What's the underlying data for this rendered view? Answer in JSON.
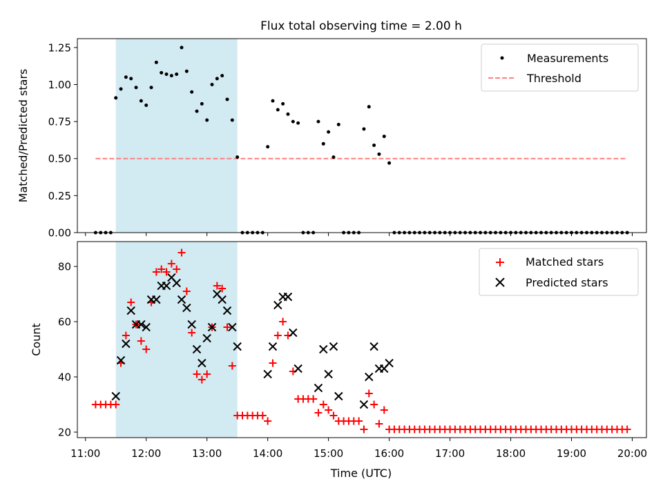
{
  "colors": {
    "shade": "#add8e6",
    "measurement": "#000000",
    "threshold": "#ff7f7f",
    "matched": "#ff0000",
    "predicted": "#000000"
  },
  "chart_data": [
    {
      "type": "scatter",
      "title": "Flux total observing time = 2.00 h",
      "xlabel": "",
      "ylabel": "Matched/Predicted stars",
      "xlim": [
        "10:52",
        "20:14"
      ],
      "ylim": [
        0,
        1.31
      ],
      "yticks": [
        "0.00",
        "0.25",
        "0.50",
        "0.75",
        "1.00",
        "1.25"
      ],
      "shaded_interval": [
        "11:30",
        "13:30"
      ],
      "threshold": {
        "name": "Threshold",
        "y": 0.5,
        "x_range": [
          "11:10",
          "19:55"
        ]
      },
      "legend": [
        "Measurements",
        "Threshold"
      ],
      "legend_position": "top-right",
      "series": [
        {
          "name": "Measurements",
          "points": [
            [
              "11:10",
              0
            ],
            [
              "11:15",
              0
            ],
            [
              "11:20",
              0
            ],
            [
              "11:25",
              0
            ],
            [
              "11:30",
              0.91
            ],
            [
              "11:35",
              0.97
            ],
            [
              "11:40",
              1.05
            ],
            [
              "11:45",
              1.04
            ],
            [
              "11:50",
              0.98
            ],
            [
              "11:55",
              0.89
            ],
            [
              "12:00",
              0.86
            ],
            [
              "12:05",
              0.98
            ],
            [
              "12:10",
              1.15
            ],
            [
              "12:15",
              1.08
            ],
            [
              "12:20",
              1.07
            ],
            [
              "12:25",
              1.06
            ],
            [
              "12:30",
              1.07
            ],
            [
              "12:35",
              1.25
            ],
            [
              "12:40",
              1.09
            ],
            [
              "12:45",
              0.95
            ],
            [
              "12:50",
              0.82
            ],
            [
              "12:55",
              0.87
            ],
            [
              "13:00",
              0.76
            ],
            [
              "13:05",
              1.0
            ],
            [
              "13:10",
              1.04
            ],
            [
              "13:15",
              1.06
            ],
            [
              "13:20",
              0.9
            ],
            [
              "13:25",
              0.76
            ],
            [
              "13:30",
              0.51
            ],
            [
              "13:35",
              0
            ],
            [
              "13:40",
              0
            ],
            [
              "13:45",
              0
            ],
            [
              "13:50",
              0
            ],
            [
              "13:55",
              0
            ],
            [
              "14:00",
              0.58
            ],
            [
              "14:05",
              0.89
            ],
            [
              "14:10",
              0.83
            ],
            [
              "14:15",
              0.87
            ],
            [
              "14:20",
              0.8
            ],
            [
              "14:25",
              0.75
            ],
            [
              "14:30",
              0.74
            ],
            [
              "14:35",
              0
            ],
            [
              "14:40",
              0
            ],
            [
              "14:45",
              0
            ],
            [
              "14:50",
              0.75
            ],
            [
              "14:55",
              0.6
            ],
            [
              "15:00",
              0.68
            ],
            [
              "15:05",
              0.51
            ],
            [
              "15:10",
              0.73
            ],
            [
              "15:15",
              0
            ],
            [
              "15:20",
              0
            ],
            [
              "15:25",
              0
            ],
            [
              "15:30",
              0
            ],
            [
              "15:35",
              0.7
            ],
            [
              "15:40",
              0.85
            ],
            [
              "15:45",
              0.59
            ],
            [
              "15:50",
              0.53
            ],
            [
              "15:55",
              0.65
            ],
            [
              "16:00",
              0.47
            ],
            [
              "16:05",
              0
            ],
            [
              "16:10",
              0
            ],
            [
              "16:15",
              0
            ],
            [
              "16:20",
              0
            ],
            [
              "16:25",
              0
            ],
            [
              "16:30",
              0
            ],
            [
              "16:35",
              0
            ],
            [
              "16:40",
              0
            ],
            [
              "16:45",
              0
            ],
            [
              "16:50",
              0
            ],
            [
              "16:55",
              0
            ],
            [
              "17:00",
              0
            ],
            [
              "17:05",
              0
            ],
            [
              "17:10",
              0
            ],
            [
              "17:15",
              0
            ],
            [
              "17:20",
              0
            ],
            [
              "17:25",
              0
            ],
            [
              "17:30",
              0
            ],
            [
              "17:35",
              0
            ],
            [
              "17:40",
              0
            ],
            [
              "17:45",
              0
            ],
            [
              "17:50",
              0
            ],
            [
              "17:55",
              0
            ],
            [
              "18:00",
              0
            ],
            [
              "18:05",
              0
            ],
            [
              "18:10",
              0
            ],
            [
              "18:15",
              0
            ],
            [
              "18:20",
              0
            ],
            [
              "18:25",
              0
            ],
            [
              "18:30",
              0
            ],
            [
              "18:35",
              0
            ],
            [
              "18:40",
              0
            ],
            [
              "18:45",
              0
            ],
            [
              "18:50",
              0
            ],
            [
              "18:55",
              0
            ],
            [
              "19:00",
              0
            ],
            [
              "19:05",
              0
            ],
            [
              "19:10",
              0
            ],
            [
              "19:15",
              0
            ],
            [
              "19:20",
              0
            ],
            [
              "19:25",
              0
            ],
            [
              "19:30",
              0
            ],
            [
              "19:35",
              0
            ],
            [
              "19:40",
              0
            ],
            [
              "19:45",
              0
            ],
            [
              "19:50",
              0
            ],
            [
              "19:55",
              0
            ]
          ]
        }
      ]
    },
    {
      "type": "scatter",
      "title": "",
      "xlabel": "Time (UTC)",
      "ylabel": "Count",
      "xlim": [
        "10:52",
        "20:14"
      ],
      "ylim": [
        18,
        89
      ],
      "yticks": [
        "20",
        "40",
        "60",
        "80"
      ],
      "xticks": [
        "11:00",
        "12:00",
        "13:00",
        "14:00",
        "15:00",
        "16:00",
        "17:00",
        "18:00",
        "19:00",
        "20:00"
      ],
      "shaded_interval": [
        "11:30",
        "13:30"
      ],
      "legend": [
        "Matched stars",
        "Predicted stars"
      ],
      "legend_position": "top-right",
      "series": [
        {
          "name": "Matched stars",
          "marker": "+",
          "points": [
            [
              "11:10",
              30
            ],
            [
              "11:15",
              30
            ],
            [
              "11:20",
              30
            ],
            [
              "11:25",
              30
            ],
            [
              "11:30",
              30
            ],
            [
              "11:35",
              45
            ],
            [
              "11:40",
              55
            ],
            [
              "11:45",
              67
            ],
            [
              "11:50",
              59
            ],
            [
              "11:55",
              53
            ],
            [
              "12:00",
              50
            ],
            [
              "12:05",
              67
            ],
            [
              "12:10",
              78
            ],
            [
              "12:15",
              79
            ],
            [
              "12:20",
              78
            ],
            [
              "12:25",
              81
            ],
            [
              "12:30",
              79
            ],
            [
              "12:35",
              85
            ],
            [
              "12:40",
              71
            ],
            [
              "12:45",
              56
            ],
            [
              "12:50",
              41
            ],
            [
              "12:55",
              39
            ],
            [
              "13:00",
              41
            ],
            [
              "13:05",
              58
            ],
            [
              "13:10",
              73
            ],
            [
              "13:15",
              72
            ],
            [
              "13:20",
              58
            ],
            [
              "13:25",
              44
            ],
            [
              "13:30",
              26
            ],
            [
              "13:35",
              26
            ],
            [
              "13:40",
              26
            ],
            [
              "13:45",
              26
            ],
            [
              "13:50",
              26
            ],
            [
              "13:55",
              26
            ],
            [
              "14:00",
              24
            ],
            [
              "14:05",
              45
            ],
            [
              "14:10",
              55
            ],
            [
              "14:15",
              60
            ],
            [
              "14:20",
              55
            ],
            [
              "14:25",
              42
            ],
            [
              "14:30",
              32
            ],
            [
              "14:35",
              32
            ],
            [
              "14:40",
              32
            ],
            [
              "14:45",
              32
            ],
            [
              "14:50",
              27
            ],
            [
              "14:55",
              30
            ],
            [
              "15:00",
              28
            ],
            [
              "15:05",
              26
            ],
            [
              "15:10",
              24
            ],
            [
              "15:15",
              24
            ],
            [
              "15:20",
              24
            ],
            [
              "15:25",
              24
            ],
            [
              "15:30",
              24
            ],
            [
              "15:35",
              21
            ],
            [
              "15:40",
              34
            ],
            [
              "15:45",
              30
            ],
            [
              "15:50",
              23
            ],
            [
              "15:55",
              28
            ],
            [
              "16:00",
              21
            ],
            [
              "16:05",
              21
            ],
            [
              "16:10",
              21
            ],
            [
              "16:15",
              21
            ],
            [
              "16:20",
              21
            ],
            [
              "16:25",
              21
            ],
            [
              "16:30",
              21
            ],
            [
              "16:35",
              21
            ],
            [
              "16:40",
              21
            ],
            [
              "16:45",
              21
            ],
            [
              "16:50",
              21
            ],
            [
              "16:55",
              21
            ],
            [
              "17:00",
              21
            ],
            [
              "17:05",
              21
            ],
            [
              "17:10",
              21
            ],
            [
              "17:15",
              21
            ],
            [
              "17:20",
              21
            ],
            [
              "17:25",
              21
            ],
            [
              "17:30",
              21
            ],
            [
              "17:35",
              21
            ],
            [
              "17:40",
              21
            ],
            [
              "17:45",
              21
            ],
            [
              "17:50",
              21
            ],
            [
              "17:55",
              21
            ],
            [
              "18:00",
              21
            ],
            [
              "18:05",
              21
            ],
            [
              "18:10",
              21
            ],
            [
              "18:15",
              21
            ],
            [
              "18:20",
              21
            ],
            [
              "18:25",
              21
            ],
            [
              "18:30",
              21
            ],
            [
              "18:35",
              21
            ],
            [
              "18:40",
              21
            ],
            [
              "18:45",
              21
            ],
            [
              "18:50",
              21
            ],
            [
              "18:55",
              21
            ],
            [
              "19:00",
              21
            ],
            [
              "19:05",
              21
            ],
            [
              "19:10",
              21
            ],
            [
              "19:15",
              21
            ],
            [
              "19:20",
              21
            ],
            [
              "19:25",
              21
            ],
            [
              "19:30",
              21
            ],
            [
              "19:35",
              21
            ],
            [
              "19:40",
              21
            ],
            [
              "19:45",
              21
            ],
            [
              "19:50",
              21
            ],
            [
              "19:55",
              21
            ]
          ]
        },
        {
          "name": "Predicted stars",
          "marker": "x",
          "points": [
            [
              "11:30",
              33
            ],
            [
              "11:35",
              46
            ],
            [
              "11:40",
              52
            ],
            [
              "11:45",
              64
            ],
            [
              "11:50",
              59
            ],
            [
              "11:55",
              59
            ],
            [
              "12:00",
              58
            ],
            [
              "12:05",
              68
            ],
            [
              "12:10",
              68
            ],
            [
              "12:15",
              73
            ],
            [
              "12:20",
              73
            ],
            [
              "12:25",
              76
            ],
            [
              "12:30",
              74
            ],
            [
              "12:35",
              68
            ],
            [
              "12:40",
              65
            ],
            [
              "12:45",
              59
            ],
            [
              "12:50",
              50
            ],
            [
              "12:55",
              45
            ],
            [
              "13:00",
              54
            ],
            [
              "13:05",
              58
            ],
            [
              "13:10",
              70
            ],
            [
              "13:15",
              68
            ],
            [
              "13:20",
              64
            ],
            [
              "13:25",
              58
            ],
            [
              "13:30",
              51
            ],
            [
              "14:00",
              41
            ],
            [
              "14:05",
              51
            ],
            [
              "14:10",
              66
            ],
            [
              "14:15",
              69
            ],
            [
              "14:20",
              69
            ],
            [
              "14:25",
              56
            ],
            [
              "14:30",
              43
            ],
            [
              "14:50",
              36
            ],
            [
              "14:55",
              50
            ],
            [
              "15:00",
              41
            ],
            [
              "15:05",
              51
            ],
            [
              "15:10",
              33
            ],
            [
              "15:35",
              30
            ],
            [
              "15:40",
              40
            ],
            [
              "15:45",
              51
            ],
            [
              "15:50",
              43
            ],
            [
              "15:55",
              43
            ],
            [
              "16:00",
              45
            ]
          ]
        }
      ]
    }
  ]
}
